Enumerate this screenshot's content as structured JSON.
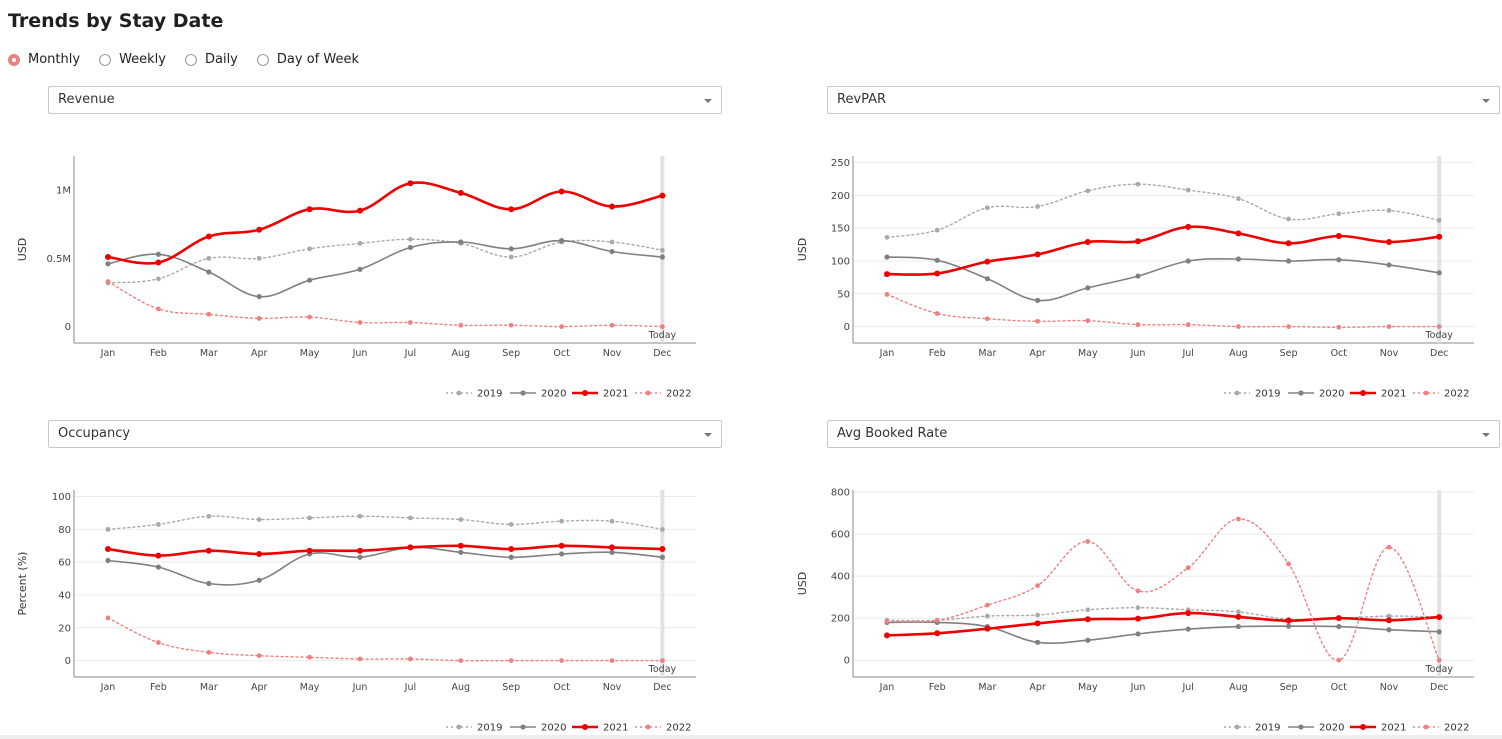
{
  "page": {
    "title": "Trends by Stay Date"
  },
  "radio_options": [
    {
      "label": "Monthly",
      "checked": true
    },
    {
      "label": "Weekly",
      "checked": false
    },
    {
      "label": "Daily",
      "checked": false
    },
    {
      "label": "Day of Week",
      "checked": false
    }
  ],
  "colors": {
    "y2019": "#a9a9a9",
    "y2020": "#808080",
    "y2021": "#ee0000",
    "y2022": "#f08080",
    "today_line": "#e2e2e2"
  },
  "chart_data": [
    {
      "type": "line",
      "dropdown": "Revenue",
      "ylabel": "USD",
      "categories": [
        "Jan",
        "Feb",
        "Mar",
        "Apr",
        "May",
        "Jun",
        "Jul",
        "Aug",
        "Sep",
        "Oct",
        "Nov",
        "Dec"
      ],
      "ylim": [
        -0.12,
        1.25
      ],
      "yticks": [
        0,
        0.5,
        1
      ],
      "ytick_labels": [
        "0",
        "0.5M",
        "1M"
      ],
      "grid": false,
      "today_label": "Today",
      "legend_position": "bottom-right",
      "series": [
        {
          "name": "2019",
          "style": "dotted",
          "values": [
            0.32,
            0.35,
            0.5,
            0.5,
            0.57,
            0.61,
            0.64,
            0.61,
            0.51,
            0.62,
            0.62,
            0.56
          ]
        },
        {
          "name": "2020",
          "style": "solid",
          "values": [
            0.46,
            0.53,
            0.4,
            0.22,
            0.34,
            0.42,
            0.58,
            0.62,
            0.57,
            0.63,
            0.55,
            0.51
          ]
        },
        {
          "name": "2021",
          "style": "bold",
          "values": [
            0.51,
            0.47,
            0.66,
            0.71,
            0.86,
            0.85,
            1.05,
            0.98,
            0.86,
            0.99,
            0.88,
            0.96
          ]
        },
        {
          "name": "2022",
          "style": "dotted",
          "values": [
            0.33,
            0.13,
            0.09,
            0.06,
            0.07,
            0.03,
            0.03,
            0.01,
            0.01,
            0.0,
            0.01,
            0.0
          ]
        }
      ]
    },
    {
      "type": "line",
      "dropdown": "RevPAR",
      "ylabel": "USD",
      "categories": [
        "Jan",
        "Feb",
        "Mar",
        "Apr",
        "May",
        "Jun",
        "Jul",
        "Aug",
        "Sep",
        "Oct",
        "Nov",
        "Dec"
      ],
      "ylim": [
        -25,
        260
      ],
      "yticks": [
        0,
        50,
        100,
        150,
        200,
        250
      ],
      "ytick_labels": [
        "0",
        "50",
        "100",
        "150",
        "200",
        "250"
      ],
      "grid": true,
      "today_label": "Today",
      "legend_position": "bottom-right",
      "series": [
        {
          "name": "2019",
          "style": "dotted",
          "values": [
            136,
            147,
            181,
            183,
            207,
            217,
            208,
            195,
            164,
            172,
            177,
            162
          ]
        },
        {
          "name": "2020",
          "style": "solid",
          "values": [
            106,
            101,
            73,
            40,
            59,
            77,
            100,
            103,
            100,
            102,
            94,
            82
          ]
        },
        {
          "name": "2021",
          "style": "bold",
          "values": [
            80,
            81,
            99,
            110,
            129,
            130,
            152,
            142,
            127,
            138,
            129,
            137
          ]
        },
        {
          "name": "2022",
          "style": "dotted",
          "values": [
            49,
            20,
            12,
            8,
            9,
            3,
            3,
            0,
            0,
            -1,
            0,
            0
          ]
        }
      ]
    },
    {
      "type": "line",
      "dropdown": "Occupancy",
      "ylabel": "Percent (%)",
      "categories": [
        "Jan",
        "Feb",
        "Mar",
        "Apr",
        "May",
        "Jun",
        "Jul",
        "Aug",
        "Sep",
        "Oct",
        "Nov",
        "Dec"
      ],
      "ylim": [
        -10,
        104
      ],
      "yticks": [
        0,
        20,
        40,
        60,
        80,
        100
      ],
      "ytick_labels": [
        "0",
        "20",
        "40",
        "60",
        "80",
        "100"
      ],
      "grid": true,
      "today_label": "Today",
      "legend_position": "bottom-right",
      "series": [
        {
          "name": "2019",
          "style": "dotted",
          "values": [
            80,
            83,
            88,
            86,
            87,
            88,
            87,
            86,
            83,
            85,
            85,
            80
          ]
        },
        {
          "name": "2020",
          "style": "solid",
          "values": [
            61,
            57,
            47,
            49,
            65,
            63,
            69,
            66,
            63,
            65,
            66,
            63
          ]
        },
        {
          "name": "2021",
          "style": "bold",
          "values": [
            68,
            64,
            67,
            65,
            67,
            67,
            69,
            70,
            68,
            70,
            69,
            68
          ]
        },
        {
          "name": "2022",
          "style": "dotted",
          "values": [
            26,
            11,
            5,
            3,
            2,
            1,
            1,
            0,
            0,
            0,
            0,
            0
          ]
        }
      ]
    },
    {
      "type": "line",
      "dropdown": "Avg Booked Rate",
      "ylabel": "USD",
      "categories": [
        "Jan",
        "Feb",
        "Mar",
        "Apr",
        "May",
        "Jun",
        "Jul",
        "Aug",
        "Sep",
        "Oct",
        "Nov",
        "Dec"
      ],
      "ylim": [
        -80,
        810
      ],
      "yticks": [
        0,
        200,
        400,
        600,
        800
      ],
      "ytick_labels": [
        "0",
        "200",
        "400",
        "600",
        "800"
      ],
      "grid": true,
      "today_label": "Today",
      "legend_position": "bottom-right",
      "series": [
        {
          "name": "2019",
          "style": "dotted",
          "values": [
            190,
            190,
            210,
            215,
            240,
            250,
            240,
            230,
            195,
            200,
            210,
            205
          ]
        },
        {
          "name": "2020",
          "style": "solid",
          "values": [
            180,
            180,
            160,
            85,
            95,
            125,
            148,
            160,
            162,
            160,
            145,
            135
          ]
        },
        {
          "name": "2021",
          "style": "bold",
          "values": [
            118,
            128,
            150,
            175,
            195,
            198,
            224,
            206,
            188,
            200,
            190,
            205
          ]
        },
        {
          "name": "2022",
          "style": "dotted",
          "values": [
            185,
            190,
            262,
            355,
            565,
            330,
            440,
            672,
            458,
            0,
            538,
            0
          ]
        }
      ]
    }
  ]
}
